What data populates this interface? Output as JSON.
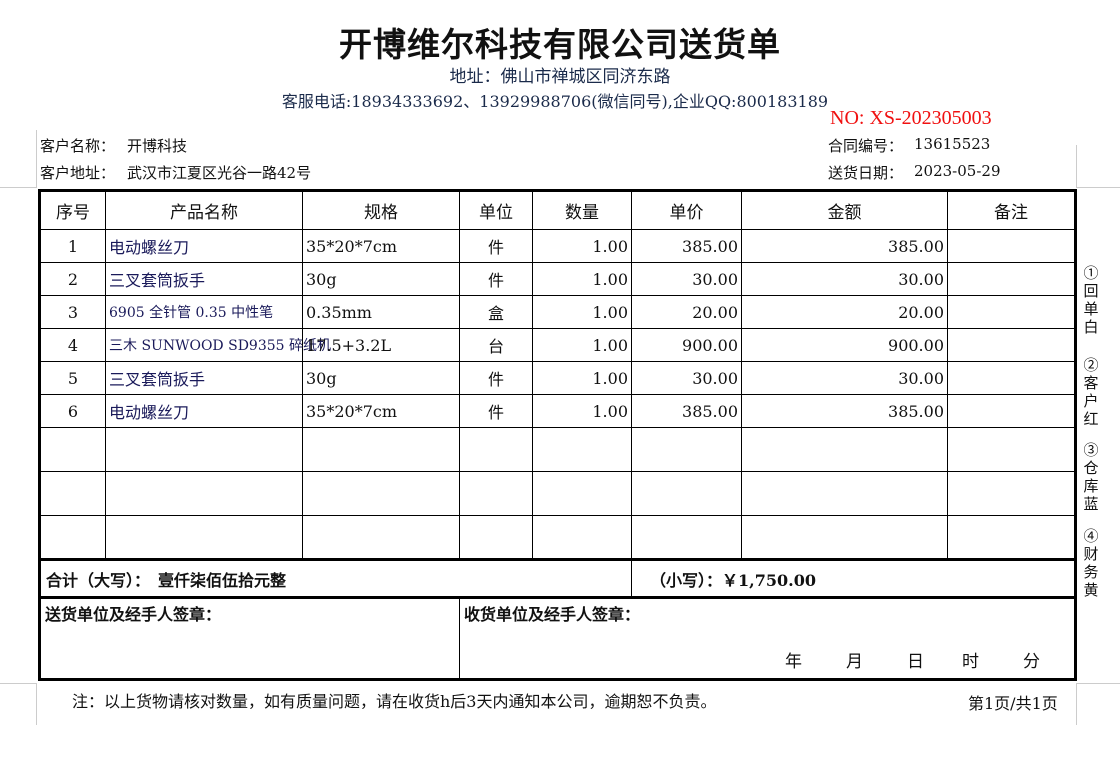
{
  "header": {
    "title": "开博维尔科技有限公司送货单",
    "address": "地址：佛山市禅城区同济东路",
    "service": "客服电话:18934333692、13929988706(微信同号),企业QQ:800183189",
    "no": "NO:  XS-202305003"
  },
  "customer": {
    "name_label": "客户名称：",
    "name": "开博科技",
    "addr_label": "客户地址：",
    "addr": "武汉市江夏区光谷一路42号",
    "contract_label": "合同编号：",
    "contract": "13615523",
    "date_label": "送货日期：",
    "date": "2023-05-29"
  },
  "table": {
    "headers": [
      "序号",
      "产品名称",
      "规格",
      "单位",
      "数量",
      "单价",
      "金额",
      "备注"
    ],
    "rows": [
      [
        "1",
        "电动螺丝刀",
        "35*20*7cm",
        "件",
        "1.00",
        "385.00",
        "385.00",
        ""
      ],
      [
        "2",
        "三叉套筒扳手",
        "30g",
        "件",
        "1.00",
        "30.00",
        "30.00",
        ""
      ],
      [
        "3",
        "6905 全针管 0.35 中性笔",
        "0.35mm",
        "盒",
        "1.00",
        "20.00",
        "20.00",
        ""
      ],
      [
        "4",
        "三木 SUNWOOD SD9355 碎纸机",
        "17.5+3.2L",
        "台",
        "1.00",
        "900.00",
        "900.00",
        ""
      ],
      [
        "5",
        "三叉套筒扳手",
        "30g",
        "件",
        "1.00",
        "30.00",
        "30.00",
        ""
      ],
      [
        "6",
        "电动螺丝刀",
        "35*20*7cm",
        "件",
        "1.00",
        "385.00",
        "385.00",
        ""
      ]
    ]
  },
  "total": {
    "upper_label": "合计（大写）：",
    "upper": "壹仟柒佰伍拾元整",
    "lower_label": "（小写）：",
    "lower": "￥1,750.00"
  },
  "sign": {
    "sender": "送货单位及经手人签章：",
    "receiver": "收货单位及经手人签章：",
    "year": "年",
    "month": "月",
    "day": "日",
    "hour": "时",
    "minute": "分"
  },
  "footer": {
    "note": "注：以上货物请核对数量，如有质量问题，请在收货h后3天内通知本公司，逾期恕不负责。",
    "page": "第1页/共1页"
  },
  "copies": [
    "①回单白",
    "②客户红",
    "③仓库蓝",
    "④财务黄"
  ]
}
